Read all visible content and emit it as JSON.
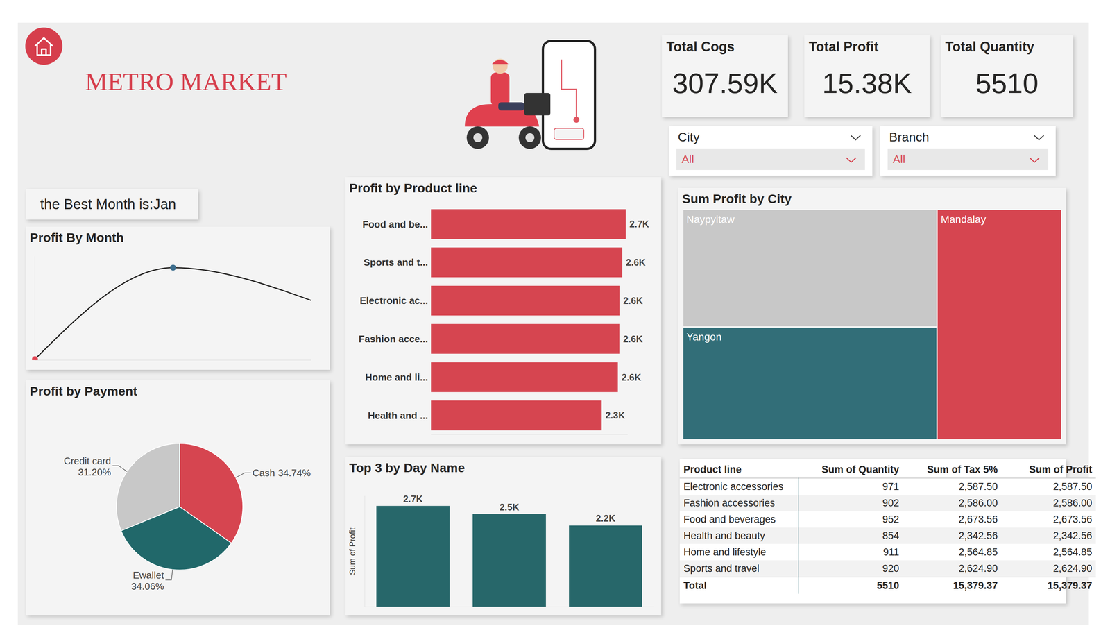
{
  "header": {
    "title": "METRO MARKET"
  },
  "kpis": [
    {
      "label": "Total Cogs",
      "value": "307.59K"
    },
    {
      "label": "Total Profit",
      "value": "15.38K"
    },
    {
      "label": "Total Quantity",
      "value": "5510"
    }
  ],
  "filters": [
    {
      "label": "City",
      "value": "All"
    },
    {
      "label": "Branch",
      "value": "All"
    }
  ],
  "best_month": "the Best Month is:Jan",
  "chart_data": [
    {
      "type": "line",
      "title": "Profit By Month",
      "categories": [
        null,
        null,
        null
      ],
      "values": [
        4629.49,
        5537.71,
        5212.17
      ],
      "color": "#252423",
      "colors": [
        "#e0404e",
        "#3d6e8e",
        "none"
      ],
      "marker": "circle",
      "ylim": [
        4620,
        5650
      ],
      "tick_labels": false
    },
    {
      "type": "pie",
      "title": "Profit by Payment",
      "categories": [
        "Cash",
        "Ewallet",
        "Credit card"
      ],
      "values": [
        34.74,
        34.06,
        31.2
      ],
      "value_labels": [
        "34.74%",
        "34.06%",
        "31.20%"
      ],
      "colors": [
        "#d64550",
        "#21686a",
        "#c8c8c8"
      ],
      "data_labels": true
    },
    {
      "type": "bar",
      "title": "Profit by Product line",
      "orientation": "horizontal",
      "categories": [
        "Food and be...",
        "Sports and t...",
        "Electronic ac...",
        "Fashion acce...",
        "Home and li...",
        "Health and ..."
      ],
      "values": [
        2673.56,
        2624.9,
        2587.5,
        2586,
        2564.85,
        2342.56
      ],
      "value_labels": [
        "2.7K",
        "2.6K",
        "2.6K",
        "2.6K",
        "2.6K",
        "2.3K"
      ],
      "color": "#d64550",
      "xlim": [
        0,
        2700
      ],
      "data_labels": true,
      "tick_labels": "y"
    },
    {
      "type": "bar",
      "title": "Top 3 by Day Name",
      "y_label": "Sum of Profit",
      "categories": [
        null,
        null,
        null
      ],
      "values": [
        2730,
        2510,
        2200
      ],
      "value_labels": [
        "2.7K",
        "2.5K",
        "2.2K"
      ],
      "color": "#27676a",
      "ylim": [
        0,
        3000
      ],
      "data_labels": true,
      "tick_labels": false
    },
    {
      "type": "treemap",
      "title": "Sum Profit by City",
      "categories": [
        "Naypyitaw",
        "Yangon",
        "Mandalay"
      ],
      "values": [
        5265.18,
        5057.16,
        5057.03
      ],
      "colors": [
        "#c8c8c8",
        "#326e78",
        "#d64550"
      ]
    }
  ],
  "table": {
    "columns": [
      "Product line",
      "Sum of Quantity",
      "Sum of Tax 5%",
      "Sum of Profit"
    ],
    "rows": [
      [
        "Electronic accessories",
        "971",
        "2,587.50",
        "2,587.50"
      ],
      [
        "Fashion accessories",
        "902",
        "2,586.00",
        "2,586.00"
      ],
      [
        "Food and beverages",
        "952",
        "2,673.56",
        "2,673.56"
      ],
      [
        "Health and beauty",
        "854",
        "2,342.56",
        "2,342.56"
      ],
      [
        "Home and lifestyle",
        "911",
        "2,564.85",
        "2,564.85"
      ],
      [
        "Sports and travel",
        "920",
        "2,624.90",
        "2,624.90"
      ]
    ],
    "total": [
      "Total",
      "5510",
      "15,379.37",
      "15,379.37"
    ]
  }
}
